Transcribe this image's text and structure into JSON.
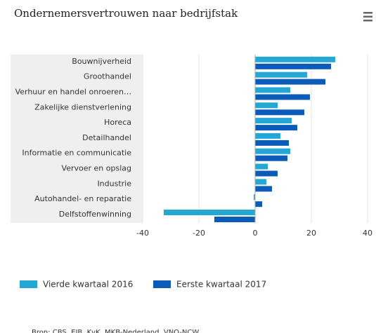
{
  "chart_data": {
    "type": "hbar",
    "title": "Ondernemersvertrouwen naar bedrijfstak",
    "categories": [
      "Bouwnijverheid",
      "Groothandel",
      "Verhuur en handel onroeren…",
      "Zakelijke dienstverlening",
      "Horeca",
      "Detailhandel",
      "Informatie en communicatie",
      "Vervoer en opslag",
      "Industrie",
      "Autohandel- en reparatie",
      "Delfstoffenwinning"
    ],
    "series": [
      {
        "name": "Vierde kwartaal 2016",
        "color": "#25a7d6",
        "values": [
          28.5,
          18.5,
          12.5,
          8,
          13,
          9,
          12.5,
          4.5,
          4,
          -0.5,
          -32.5
        ]
      },
      {
        "name": "Eerste kwartaal 2017",
        "color": "#0d5bb8",
        "values": [
          27,
          25,
          19.5,
          17.5,
          15,
          12,
          11.5,
          8,
          6,
          2.5,
          -14.5
        ]
      }
    ],
    "xlim": [
      -40,
      40
    ],
    "xticks": [
      -40,
      -20,
      0,
      20,
      40
    ],
    "grid": true,
    "source": "Bron: CBS, EIB, KvK, MKB-Nederland, VNO-NCW"
  }
}
